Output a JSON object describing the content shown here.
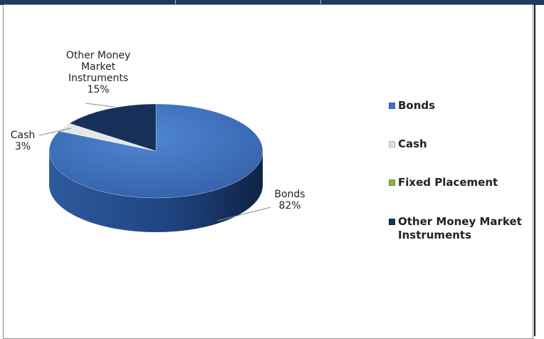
{
  "chart_data": {
    "type": "pie",
    "style": "3d",
    "legend_position": "right",
    "categories": [
      "Bonds",
      "Cash",
      "Fixed Placement",
      "Other Money Market Instruments"
    ],
    "values": [
      82,
      3,
      0,
      15
    ],
    "data_labels": [
      {
        "category": "Other Money Market Instruments",
        "lines": [
          "Other Money",
          "Market",
          "Instruments"
        ],
        "value": "15%"
      },
      {
        "category": "Cash",
        "lines": [
          "Cash"
        ],
        "value": "3%"
      },
      {
        "category": "Bonds",
        "lines": [
          "Bonds"
        ],
        "value": "82%"
      }
    ],
    "colors": {
      "Bonds": "#3f73c1",
      "Cash": "#e6e6e6",
      "Fixed Placement": "#8ab33f",
      "Other Money Market Instruments": "#17305a"
    }
  },
  "legend": {
    "items": [
      {
        "label": "Bonds",
        "color": "#3f73c1"
      },
      {
        "label": "Cash",
        "color": "#e0e0e0"
      },
      {
        "label": "Fixed Placement",
        "color": "#8ab33f"
      },
      {
        "label": "Other Money Market Instruments",
        "color": "#17305a"
      }
    ]
  }
}
